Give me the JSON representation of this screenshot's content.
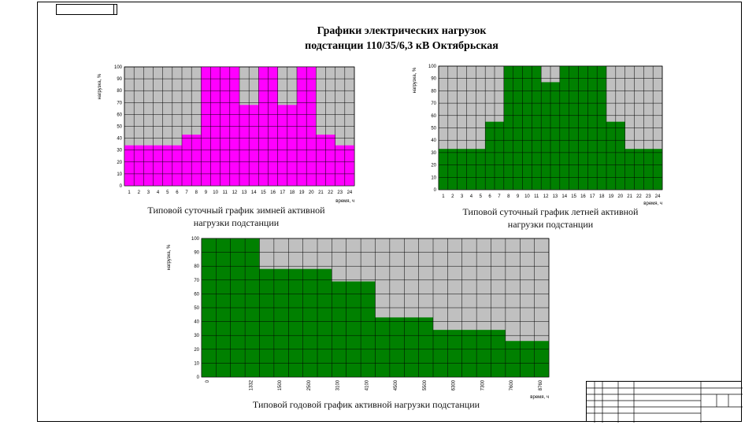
{
  "title": {
    "line1": "Графики электрических нагрузок",
    "line2": "подстанции 110/35/6,3 кВ Октябрьская"
  },
  "captions": {
    "winter_line1": "Типовой суточный график зимней активной",
    "winter_line2": "нагрузки подстанции",
    "summer_line1": "Типовой суточный график летней активной",
    "summer_line2": "нагрузки подстанции",
    "annual": "Типовой годовой график активной нагрузки подстанции"
  },
  "colors": {
    "winter_fill": "#ff00ff",
    "summer_fill": "#008000",
    "annual_fill": "#008000",
    "background_fill": "#c0c0c0",
    "grid": "#000000"
  },
  "chart_data": [
    {
      "type": "bar",
      "id": "winter",
      "title": "Типовой суточный график зимней активной нагрузки подстанции",
      "xlabel": "время, ч",
      "ylabel": "нагрузка, %",
      "categories": [
        "1",
        "2",
        "3",
        "4",
        "5",
        "6",
        "7",
        "8",
        "9",
        "10",
        "11",
        "12",
        "13",
        "14",
        "15",
        "16",
        "17",
        "18",
        "19",
        "20",
        "21",
        "22",
        "23",
        "24"
      ],
      "values": [
        34,
        34,
        34,
        34,
        34,
        34,
        43,
        43,
        100,
        100,
        100,
        100,
        68,
        68,
        100,
        100,
        68,
        68,
        100,
        100,
        43,
        43,
        34,
        34
      ],
      "ylim": [
        0,
        100
      ],
      "yticks": [
        0,
        10,
        20,
        30,
        40,
        50,
        60,
        70,
        80,
        90,
        100
      ],
      "grid": true
    },
    {
      "type": "bar",
      "id": "summer",
      "title": "Типовой суточный график летней активной нагрузки подстанции",
      "xlabel": "время, ч",
      "ylabel": "нагрузка, %",
      "categories": [
        "1",
        "2",
        "3",
        "4",
        "5",
        "6",
        "7",
        "8",
        "9",
        "10",
        "11",
        "12",
        "13",
        "14",
        "15",
        "16",
        "17",
        "18",
        "19",
        "20",
        "21",
        "22",
        "23",
        "24"
      ],
      "values": [
        33,
        33,
        33,
        33,
        33,
        55,
        55,
        100,
        100,
        100,
        100,
        87,
        87,
        100,
        100,
        100,
        100,
        100,
        55,
        55,
        33,
        33,
        33,
        33
      ],
      "ylim": [
        0,
        100
      ],
      "yticks": [
        0,
        10,
        20,
        30,
        40,
        50,
        60,
        70,
        80,
        90,
        100
      ],
      "grid": true
    },
    {
      "type": "bar",
      "id": "annual",
      "title": "Типовой годовой график активной нагрузки подстанции",
      "xlabel": "время, ч",
      "ylabel": "нагрузка, %",
      "categories": [
        "0",
        "",
        "",
        "1332",
        "",
        "1500",
        "",
        "2500",
        "",
        "3100",
        "",
        "4100",
        "",
        "4500",
        "",
        "5500",
        "",
        "6300",
        "",
        "7300",
        "",
        "7600",
        "",
        "8760"
      ],
      "values": [
        100,
        100,
        100,
        100,
        78,
        78,
        78,
        78,
        78,
        69,
        69,
        69,
        43,
        43,
        43,
        43,
        34,
        34,
        34,
        34,
        34,
        26,
        26,
        26
      ],
      "ylim": [
        0,
        100
      ],
      "yticks": [
        0,
        10,
        20,
        30,
        40,
        50,
        60,
        70,
        80,
        90,
        100
      ],
      "grid": true
    }
  ]
}
